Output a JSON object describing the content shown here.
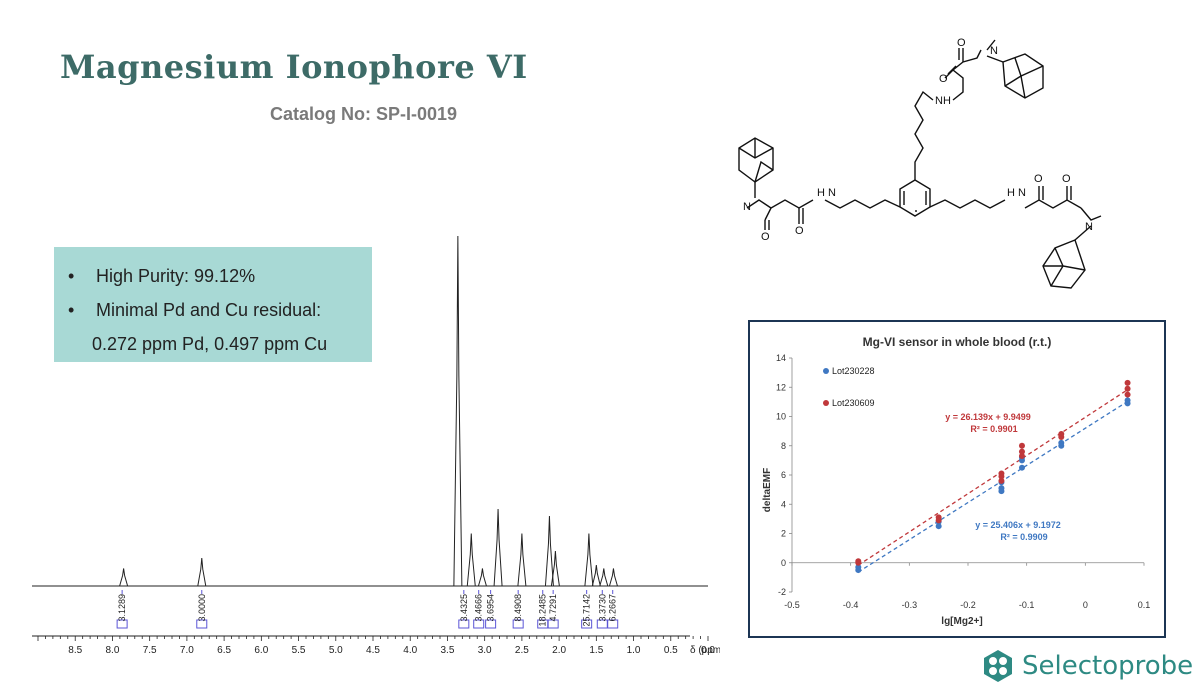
{
  "header": {
    "title": "Magnesium Ionophore VI",
    "catalog": "Catalog No: SP-I-0019"
  },
  "purity_box": {
    "bullet_char": "•",
    "line1": "High Purity: 99.12%",
    "line2": "Minimal Pd and Cu residual:",
    "line3": "0.272 ppm Pd, 0.497 ppm Cu"
  },
  "molecule": {
    "atom_labels": [
      "O",
      "N",
      "O",
      "NH",
      "H N",
      "N",
      "O",
      "O",
      "H N",
      "O",
      "O",
      "N"
    ]
  },
  "logo": {
    "name": "Selectoprobe",
    "color": "#2e8a83"
  },
  "chart_data": [
    {
      "type": "line",
      "xlabel": "δ (ppm)",
      "xlim": [
        9.0,
        0.0
      ],
      "x_reversed": true,
      "ticks": [
        "8.5",
        "8.0",
        "7.5",
        "7.0",
        "6.5",
        "6.0",
        "5.5",
        "5.0",
        "4.5",
        "4.0",
        "3.5",
        "3.0",
        "2.5",
        "2.0",
        "1.5",
        "1.0",
        "0.5",
        "0.0"
      ],
      "peaks": [
        {
          "ppm": 7.85,
          "height": 0.05
        },
        {
          "ppm": 6.8,
          "height": 0.08
        },
        {
          "ppm": 3.36,
          "height": 1.0
        },
        {
          "ppm": 3.18,
          "height": 0.15
        },
        {
          "ppm": 3.03,
          "height": 0.05
        },
        {
          "ppm": 2.82,
          "height": 0.22
        },
        {
          "ppm": 2.5,
          "height": 0.15
        },
        {
          "ppm": 2.13,
          "height": 0.2
        },
        {
          "ppm": 2.05,
          "height": 0.1
        },
        {
          "ppm": 1.6,
          "height": 0.15
        },
        {
          "ppm": 1.5,
          "height": 0.06
        },
        {
          "ppm": 1.4,
          "height": 0.05
        },
        {
          "ppm": 1.27,
          "height": 0.05
        }
      ],
      "integrals": [
        {
          "ppm": 7.87,
          "value": "3.1289"
        },
        {
          "ppm": 6.8,
          "value": "3.0000"
        },
        {
          "ppm": 3.28,
          "value": "3.4325"
        },
        {
          "ppm": 3.08,
          "value": "3.4666"
        },
        {
          "ppm": 2.92,
          "value": "3.6954"
        },
        {
          "ppm": 2.55,
          "value": "8.4908"
        },
        {
          "ppm": 2.22,
          "value": "18.2485"
        },
        {
          "ppm": 2.08,
          "value": "4.7291"
        },
        {
          "ppm": 1.63,
          "value": "25.7142"
        },
        {
          "ppm": 1.42,
          "value": "3.3730"
        },
        {
          "ppm": 1.28,
          "value": "6.2667"
        }
      ]
    },
    {
      "type": "scatter",
      "title": "Mg-VI sensor in whole blood (r.t.)",
      "xlabel": "lg[Mg2+]",
      "ylabel": "deltaEMF",
      "xlim": [
        -0.5,
        0.1
      ],
      "ylim": [
        -2,
        14
      ],
      "xticks": [
        "-0.5",
        "-0.4",
        "-0.3",
        "-0.2",
        "-0.1",
        "0",
        "0.1"
      ],
      "yticks": [
        "-2",
        "0",
        "2",
        "4",
        "6",
        "8",
        "10",
        "12",
        "14"
      ],
      "legend_position": "top-left",
      "series": [
        {
          "name": "Lot230228",
          "color": "#3f78c2",
          "points": [
            [
              -0.387,
              -0.5
            ],
            [
              -0.387,
              -0.3
            ],
            [
              -0.25,
              2.5
            ],
            [
              -0.25,
              2.8
            ],
            [
              -0.143,
              4.9
            ],
            [
              -0.143,
              5.1
            ],
            [
              -0.143,
              5.5
            ],
            [
              -0.108,
              6.5
            ],
            [
              -0.108,
              7.0
            ],
            [
              -0.108,
              7.2
            ],
            [
              -0.041,
              8.0
            ],
            [
              -0.041,
              8.2
            ],
            [
              0.072,
              10.9
            ],
            [
              0.072,
              11.1
            ]
          ],
          "fit": {
            "slope": 25.406,
            "intercept": 9.1972
          },
          "equation": "y = 25.406x + 9.1972",
          "r2": "R² = 0.9909"
        },
        {
          "name": "Lot230609",
          "color": "#c0383b",
          "points": [
            [
              -0.387,
              0.0
            ],
            [
              -0.387,
              0.1
            ],
            [
              -0.25,
              2.9
            ],
            [
              -0.25,
              3.1
            ],
            [
              -0.143,
              5.6
            ],
            [
              -0.143,
              5.9
            ],
            [
              -0.143,
              6.1
            ],
            [
              -0.108,
              7.3
            ],
            [
              -0.108,
              7.6
            ],
            [
              -0.108,
              8.0
            ],
            [
              -0.041,
              8.6
            ],
            [
              -0.041,
              8.8
            ],
            [
              0.072,
              11.5
            ],
            [
              0.072,
              11.9
            ],
            [
              0.072,
              12.3
            ]
          ],
          "fit": {
            "slope": 26.139,
            "intercept": 9.9499
          },
          "equation": "y = 26.139x + 9.9499",
          "r2": "R² = 0.9901"
        }
      ]
    }
  ]
}
